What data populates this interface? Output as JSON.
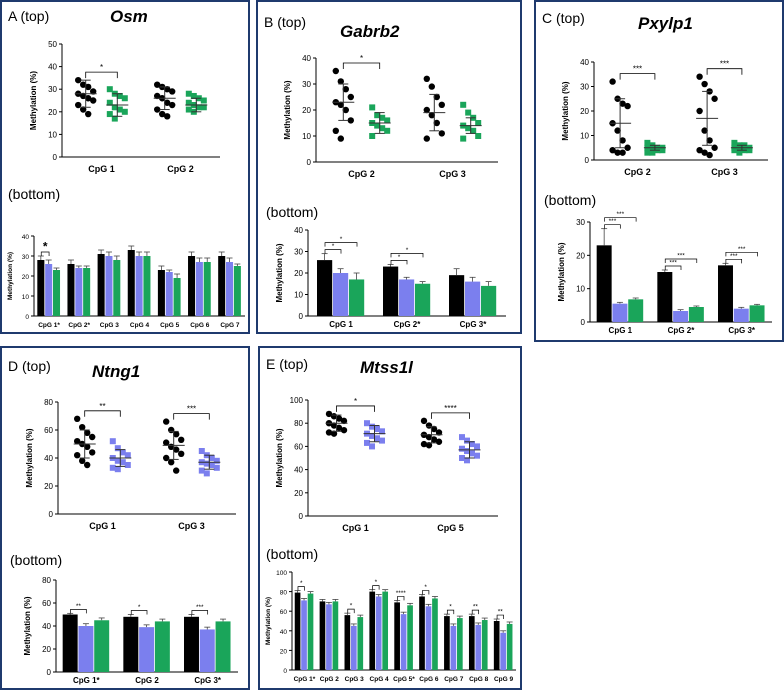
{
  "colors": {
    "ctrl": "#000000",
    "c2": "#7b7fee",
    "c3": "#1aa55a",
    "frame": "#1f3a6e"
  },
  "panels": [
    {
      "id": "A",
      "top_label": "A (top)",
      "gene": "Osm",
      "bottom_label": "(bottom)",
      "top_chart": {
        "type": "scatter",
        "ylabel": "Methylation (%)",
        "ylim": [
          0,
          50
        ],
        "yticks": [
          0,
          10,
          20,
          30,
          40,
          50
        ],
        "groups": [
          "CpG 1",
          "CpG 2"
        ],
        "series_colors": [
          "#000000",
          "#1aa55a"
        ],
        "means": [
          [
            28,
            23
          ],
          [
            26,
            23
          ]
        ],
        "sds": [
          [
            6,
            5
          ],
          [
            5,
            3
          ]
        ],
        "points": [
          [
            [
              34,
              32,
              31,
              29,
              28,
              27,
              26,
              25,
              23,
              21,
              19
            ],
            [
              30,
              28,
              27,
              26,
              24,
              22,
              21,
              20,
              19,
              17
            ]
          ],
          [
            [
              32,
              31,
              30,
              29,
              27,
              26,
              24,
              23,
              21,
              19,
              18
            ],
            [
              28,
              27,
              26,
              25,
              24,
              23,
              22,
              22,
              21,
              20
            ]
          ]
        ],
        "sig": [
          {
            "group": 0,
            "text": "*"
          }
        ]
      },
      "bottom_chart": {
        "type": "bar",
        "ylabel": "Methylation (%)",
        "ylim": [
          0,
          40
        ],
        "yticks": [
          0,
          10,
          20,
          30,
          40
        ],
        "categories": [
          "CpG 1*",
          "CpG 2*",
          "CpG 3",
          "CpG 4",
          "CpG 5",
          "CpG 6",
          "CpG 7"
        ],
        "series_colors": [
          "#000000",
          "#7b7fee",
          "#1aa55a"
        ],
        "values": [
          [
            28,
            26,
            23
          ],
          [
            26,
            24,
            24
          ],
          [
            31,
            30,
            28
          ],
          [
            33,
            30,
            30
          ],
          [
            23,
            22,
            19
          ],
          [
            30,
            27,
            27
          ],
          [
            30,
            27,
            25
          ]
        ],
        "errors": [
          [
            2,
            2,
            1
          ],
          [
            2,
            1,
            1
          ],
          [
            2,
            2,
            2
          ],
          [
            2,
            2,
            2
          ],
          [
            2,
            1,
            2
          ],
          [
            2,
            2,
            2
          ],
          [
            2,
            2,
            1
          ]
        ],
        "sig": [
          {
            "cat": 0,
            "pair": [
              0,
              1
            ],
            "text": "*",
            "big": true
          }
        ]
      }
    },
    {
      "id": "B",
      "top_label": "B (top)",
      "gene": "Gabrb2",
      "bottom_label": "(bottom)",
      "top_chart": {
        "type": "scatter",
        "ylabel": "Methylation (%)",
        "ylim": [
          0,
          40
        ],
        "yticks": [
          0,
          10,
          20,
          30,
          40
        ],
        "groups": [
          "CpG 2",
          "CpG 3"
        ],
        "series_colors": [
          "#000000",
          "#1aa55a"
        ],
        "means": [
          [
            23,
            15
          ],
          [
            19,
            14
          ]
        ],
        "sds": [
          [
            7,
            4
          ],
          [
            7,
            3
          ]
        ],
        "points": [
          [
            [
              35,
              31,
              28,
              25,
              23,
              22,
              20,
              16,
              12,
              9
            ],
            [
              21,
              18,
              17,
              16,
              15,
              14,
              13,
              12,
              10
            ]
          ],
          [
            [
              32,
              29,
              25,
              22,
              20,
              18,
              15,
              11,
              9
            ],
            [
              22,
              19,
              17,
              15,
              14,
              13,
              12,
              10,
              9
            ]
          ]
        ],
        "sig": [
          {
            "group": 0,
            "text": "*"
          }
        ]
      },
      "bottom_chart": {
        "type": "bar",
        "ylabel": "Methylation (%)",
        "ylim": [
          0,
          40
        ],
        "yticks": [
          0,
          10,
          20,
          30,
          40
        ],
        "categories": [
          "CpG 1",
          "CpG 2*",
          "CpG 3*"
        ],
        "series_colors": [
          "#000000",
          "#7b7fee",
          "#1aa55a"
        ],
        "values": [
          [
            26,
            20,
            17
          ],
          [
            23,
            17,
            15
          ],
          [
            19,
            16,
            14
          ]
        ],
        "errors": [
          [
            3,
            2,
            3
          ],
          [
            1,
            1,
            1
          ],
          [
            3,
            2,
            2
          ]
        ],
        "sig": [
          {
            "cat": 0,
            "pair": [
              0,
              1
            ],
            "text": "*"
          },
          {
            "cat": 0,
            "pair": [
              0,
              2
            ],
            "text": "*"
          },
          {
            "cat": 1,
            "pair": [
              0,
              1
            ],
            "text": "*"
          },
          {
            "cat": 1,
            "pair": [
              0,
              2
            ],
            "text": "*"
          }
        ]
      }
    },
    {
      "id": "C",
      "top_label": "C (top)",
      "gene": "Pxylp1",
      "bottom_label": "(bottom)",
      "top_chart": {
        "type": "scatter",
        "ylabel": "Methylation (%)",
        "ylim": [
          0,
          40
        ],
        "yticks": [
          0,
          10,
          20,
          30,
          40
        ],
        "groups": [
          "CpG 2",
          "CpG 3"
        ],
        "series_colors": [
          "#000000",
          "#1aa55a"
        ],
        "means": [
          [
            15,
            5
          ],
          [
            17,
            5
          ]
        ],
        "sds": [
          [
            10,
            1
          ],
          [
            11,
            1
          ]
        ],
        "points": [
          [
            [
              32,
              25,
              23,
              22,
              15,
              12,
              8,
              5,
              4,
              3,
              3
            ],
            [
              7,
              6,
              5,
              5,
              5,
              4,
              4,
              4,
              3,
              3
            ]
          ],
          [
            [
              34,
              31,
              28,
              25,
              20,
              12,
              8,
              5,
              4,
              3,
              2
            ],
            [
              7,
              6,
              6,
              5,
              5,
              5,
              4,
              4,
              4,
              3
            ]
          ]
        ],
        "sig": [
          {
            "group": 0,
            "text": "***"
          },
          {
            "group": 1,
            "text": "***"
          }
        ]
      },
      "bottom_chart": {
        "type": "bar",
        "ylabel": "Methylation (%)",
        "ylim": [
          0,
          30
        ],
        "yticks": [
          0,
          10,
          20,
          30
        ],
        "categories": [
          "CpG 1",
          "CpG 2*",
          "CpG 3*"
        ],
        "series_colors": [
          "#000000",
          "#7b7fee",
          "#1aa55a"
        ],
        "values": [
          [
            23,
            5.5,
            6.8
          ],
          [
            15,
            3.3,
            4.5
          ],
          [
            17,
            4,
            5
          ]
        ],
        "errors": [
          [
            5,
            0.4,
            0.4
          ],
          [
            0.6,
            0.4,
            0.3
          ],
          [
            0.6,
            0.4,
            0.3
          ]
        ],
        "sig": [
          {
            "cat": 0,
            "pair": [
              0,
              1
            ],
            "text": "***"
          },
          {
            "cat": 0,
            "pair": [
              0,
              2
            ],
            "text": "***"
          },
          {
            "cat": 1,
            "pair": [
              0,
              1
            ],
            "text": "***"
          },
          {
            "cat": 1,
            "pair": [
              0,
              2
            ],
            "text": "***"
          },
          {
            "cat": 2,
            "pair": [
              0,
              1
            ],
            "text": "***"
          },
          {
            "cat": 2,
            "pair": [
              0,
              2
            ],
            "text": "***"
          }
        ]
      }
    },
    {
      "id": "D",
      "top_label": "D (top)",
      "gene": "Ntng1",
      "bottom_label": "(bottom)",
      "top_chart": {
        "type": "scatter",
        "ylabel": "Methylation (%)",
        "ylim": [
          0,
          80
        ],
        "yticks": [
          0,
          20,
          40,
          60,
          80
        ],
        "groups": [
          "CpG 1",
          "CpG 3"
        ],
        "series_colors": [
          "#000000",
          "#7b7fee"
        ],
        "means": [
          [
            50,
            40
          ],
          [
            49,
            37
          ]
        ],
        "sds": [
          [
            10,
            6
          ],
          [
            10,
            5
          ]
        ],
        "points": [
          [
            [
              68,
              62,
              58,
              55,
              52,
              50,
              48,
              44,
              42,
              38,
              35
            ],
            [
              52,
              47,
              44,
              42,
              40,
              38,
              37,
              35,
              33,
              32
            ]
          ],
          [
            [
              66,
              60,
              57,
              53,
              51,
              48,
              46,
              43,
              40,
              37,
              31
            ],
            [
              45,
              42,
              40,
              38,
              37,
              36,
              35,
              33,
              31,
              29
            ]
          ]
        ],
        "sig": [
          {
            "group": 0,
            "text": "**"
          },
          {
            "group": 1,
            "text": "***"
          }
        ]
      },
      "bottom_chart": {
        "type": "bar",
        "ylabel": "Methylation (%)",
        "ylim": [
          0,
          80
        ],
        "yticks": [
          0,
          20,
          40,
          60,
          80
        ],
        "categories": [
          "CpG 1*",
          "CpG 2",
          "CpG 3*"
        ],
        "series_colors": [
          "#000000",
          "#7b7fee",
          "#1aa55a"
        ],
        "values": [
          [
            50,
            40,
            45
          ],
          [
            48,
            39,
            44
          ],
          [
            48,
            37,
            44
          ]
        ],
        "errors": [
          [
            1,
            2,
            2
          ],
          [
            2,
            2,
            2
          ],
          [
            2,
            2,
            2
          ]
        ],
        "sig": [
          {
            "cat": 0,
            "pair": [
              0,
              1
            ],
            "text": "**"
          },
          {
            "cat": 1,
            "pair": [
              0,
              1
            ],
            "text": "*"
          },
          {
            "cat": 2,
            "pair": [
              0,
              1
            ],
            "text": "***"
          }
        ]
      }
    },
    {
      "id": "E",
      "top_label": "E (top)",
      "gene": "Mtss1l",
      "bottom_label": "(bottom)",
      "top_chart": {
        "type": "scatter",
        "ylabel": "Methylation (%)",
        "ylim": [
          0,
          100
        ],
        "yticks": [
          0,
          20,
          40,
          60,
          80,
          100
        ],
        "groups": [
          "CpG 1",
          "CpG 5"
        ],
        "series_colors": [
          "#000000",
          "#7b7fee"
        ],
        "means": [
          [
            80,
            71
          ],
          [
            70,
            57
          ]
        ],
        "sds": [
          [
            7,
            7
          ],
          [
            7,
            7
          ]
        ],
        "points": [
          [
            [
              88,
              86,
              84,
              82,
              80,
              78,
              76,
              74,
              72,
              71
            ],
            [
              80,
              77,
              75,
              73,
              71,
              69,
              67,
              65,
              63,
              60
            ]
          ],
          [
            [
              82,
              78,
              75,
              72,
              70,
              68,
              66,
              64,
              62,
              61
            ],
            [
              68,
              65,
              62,
              60,
              58,
              56,
              54,
              52,
              50,
              48
            ]
          ]
        ],
        "sig": [
          {
            "group": 0,
            "text": "*"
          },
          {
            "group": 1,
            "text": "****"
          }
        ]
      },
      "bottom_chart": {
        "type": "bar",
        "ylabel": "Methylation (%)",
        "ylim": [
          0,
          100
        ],
        "yticks": [
          0,
          20,
          40,
          60,
          80,
          100
        ],
        "categories": [
          "CpG 1*",
          "CpG 2",
          "CpG 3",
          "CpG 4",
          "CpG 5*",
          "CpG 6",
          "CpG 7",
          "CpG 8",
          "CpG 9"
        ],
        "series_colors": [
          "#000000",
          "#7b7fee",
          "#1aa55a"
        ],
        "values": [
          [
            79,
            71,
            78
          ],
          [
            70,
            67,
            70
          ],
          [
            56,
            45,
            54
          ],
          [
            80,
            75,
            80
          ],
          [
            69,
            57,
            66
          ],
          [
            75,
            65,
            73
          ],
          [
            55,
            45,
            53
          ],
          [
            55,
            46,
            51
          ],
          [
            50,
            38,
            47
          ]
        ],
        "errors": [
          [
            2,
            2,
            2
          ],
          [
            2,
            2,
            2
          ],
          [
            2,
            2,
            2
          ],
          [
            2,
            2,
            2
          ],
          [
            2,
            2,
            2
          ],
          [
            2,
            2,
            2
          ],
          [
            2,
            2,
            2
          ],
          [
            2,
            2,
            2
          ],
          [
            2,
            2,
            2
          ]
        ],
        "sig": [
          {
            "cat": 0,
            "pair": [
              0,
              1
            ],
            "text": "*"
          },
          {
            "cat": 2,
            "pair": [
              0,
              1
            ],
            "text": "*"
          },
          {
            "cat": 3,
            "pair": [
              0,
              1
            ],
            "text": "*"
          },
          {
            "cat": 4,
            "pair": [
              0,
              1
            ],
            "text": "****"
          },
          {
            "cat": 5,
            "pair": [
              0,
              1
            ],
            "text": "*"
          },
          {
            "cat": 6,
            "pair": [
              0,
              1
            ],
            "text": "*"
          },
          {
            "cat": 7,
            "pair": [
              0,
              1
            ],
            "text": "**"
          },
          {
            "cat": 8,
            "pair": [
              0,
              1
            ],
            "text": "**"
          }
        ]
      }
    }
  ]
}
